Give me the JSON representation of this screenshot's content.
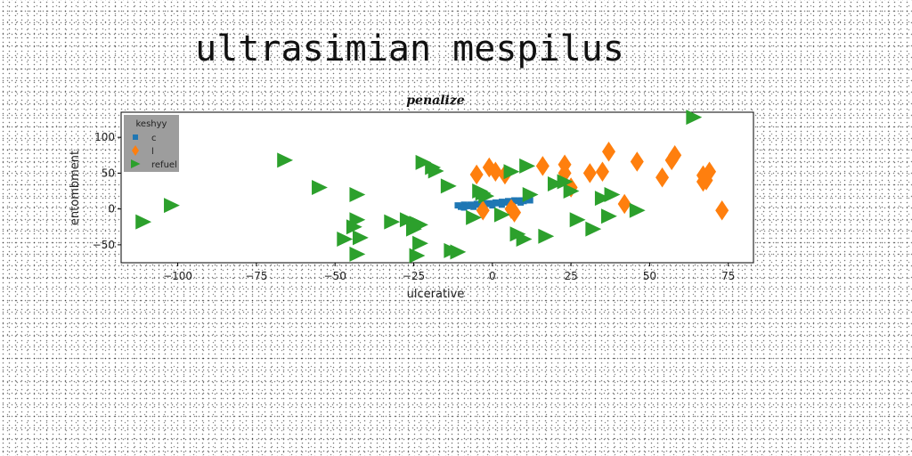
{
  "page_title": "ultrasimian mespilus",
  "chart_data": {
    "type": "scatter",
    "title": "penalize",
    "xlabel": "ulcerative",
    "ylabel": "entombment",
    "xlim": [
      -118,
      83
    ],
    "ylim": [
      -75,
      135
    ],
    "xticks": [
      -100,
      -75,
      -50,
      -25,
      0,
      25,
      50,
      75
    ],
    "yticks": [
      -50,
      0,
      50,
      100
    ],
    "grid": false,
    "legend": {
      "title": "keshyy",
      "placement": "top-left"
    },
    "series": [
      {
        "name": "c",
        "marker": "square",
        "color": "#1f77b4",
        "points": [
          [
            -11,
            5
          ],
          [
            -9,
            6
          ],
          [
            -7,
            6
          ],
          [
            -5,
            7
          ],
          [
            -3,
            8
          ],
          [
            -1,
            8
          ],
          [
            1,
            9
          ],
          [
            3,
            10
          ],
          [
            5,
            11
          ],
          [
            7,
            12
          ],
          [
            9,
            12
          ],
          [
            11,
            13
          ],
          [
            -10,
            3
          ],
          [
            -8,
            4
          ],
          [
            -6,
            5
          ],
          [
            -4,
            6
          ],
          [
            -2,
            7
          ],
          [
            0,
            7
          ],
          [
            2,
            8
          ],
          [
            4,
            9
          ],
          [
            6,
            10
          ],
          [
            8,
            11
          ],
          [
            10,
            11
          ],
          [
            12,
            12
          ],
          [
            -9,
            2
          ],
          [
            -6,
            3
          ],
          [
            -3,
            4
          ],
          [
            0,
            5
          ],
          [
            3,
            6
          ],
          [
            6,
            8
          ],
          [
            9,
            9
          ]
        ]
      },
      {
        "name": "l",
        "marker": "diamond",
        "color": "#ff7f0e",
        "points": [
          [
            -5,
            48
          ],
          [
            -1,
            58
          ],
          [
            1,
            52
          ],
          [
            4,
            48
          ],
          [
            7,
            -5
          ],
          [
            6,
            0
          ],
          [
            16,
            60
          ],
          [
            23,
            50
          ],
          [
            23,
            62
          ],
          [
            25,
            30
          ],
          [
            31,
            50
          ],
          [
            35,
            52
          ],
          [
            37,
            80
          ],
          [
            42,
            7
          ],
          [
            46,
            66
          ],
          [
            54,
            44
          ],
          [
            57,
            68
          ],
          [
            58,
            75
          ],
          [
            67,
            47
          ],
          [
            67,
            38
          ],
          [
            69,
            52
          ],
          [
            68,
            40
          ],
          [
            73,
            -2
          ],
          [
            -3,
            -2
          ]
        ]
      },
      {
        "name": "refuel",
        "marker": "triangle-right",
        "color": "#2ca02c",
        "points": [
          [
            -111,
            -18
          ],
          [
            -102,
            5
          ],
          [
            -66,
            68
          ],
          [
            -55,
            30
          ],
          [
            -43,
            20
          ],
          [
            -47,
            -42
          ],
          [
            -42,
            -40
          ],
          [
            -43,
            -15
          ],
          [
            -44,
            -25
          ],
          [
            -43,
            -63
          ],
          [
            -32,
            -18
          ],
          [
            -27,
            -15
          ],
          [
            -25,
            -28
          ],
          [
            -24,
            -20
          ],
          [
            -24,
            -65
          ],
          [
            -23,
            -22
          ],
          [
            -23,
            -48
          ],
          [
            -22,
            65
          ],
          [
            -19,
            58
          ],
          [
            -18,
            53
          ],
          [
            -14,
            32
          ],
          [
            -13,
            -58
          ],
          [
            -11,
            -60
          ],
          [
            -6,
            -12
          ],
          [
            -4,
            25
          ],
          [
            -3,
            22
          ],
          [
            3,
            -8
          ],
          [
            6,
            52
          ],
          [
            8,
            -35
          ],
          [
            10,
            -42
          ],
          [
            11,
            60
          ],
          [
            12,
            20
          ],
          [
            17,
            -38
          ],
          [
            20,
            35
          ],
          [
            23,
            38
          ],
          [
            25,
            25
          ],
          [
            27,
            -15
          ],
          [
            32,
            -28
          ],
          [
            35,
            15
          ],
          [
            37,
            -10
          ],
          [
            38,
            20
          ],
          [
            46,
            -2
          ],
          [
            64,
            128
          ],
          [
            -2,
            18
          ]
        ]
      }
    ]
  }
}
